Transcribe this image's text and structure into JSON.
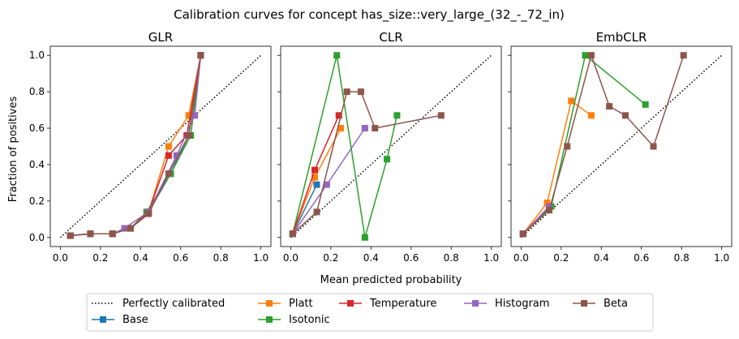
{
  "figure_title": "Calibration curves for concept has_size::very_large_(32_-_72_in)",
  "xlabel": "Mean predicted probability",
  "ylabel": "Fraction of positives",
  "legend": {
    "placement": "bottom-center",
    "entries": [
      {
        "key": "perfect",
        "label": "Perfectly calibrated"
      },
      {
        "key": "base",
        "label": "Base"
      },
      {
        "key": "platt",
        "label": "Platt"
      },
      {
        "key": "isotonic",
        "label": "Isotonic"
      },
      {
        "key": "temperature",
        "label": "Temperature"
      },
      {
        "key": "histogram",
        "label": "Histogram"
      },
      {
        "key": "beta",
        "label": "Beta"
      }
    ]
  },
  "colors": {
    "base": "#1f77b4",
    "platt": "#ff7f0e",
    "isotonic": "#2ca02c",
    "temperature": "#d62728",
    "histogram": "#9467bd",
    "beta": "#8c564b",
    "perfect": "#000000"
  },
  "chart_data": [
    {
      "type": "line",
      "title": "GLR",
      "xlim": [
        -0.05,
        1.05
      ],
      "ylim": [
        -0.05,
        1.05
      ],
      "xticks": [
        "0.0",
        "0.2",
        "0.4",
        "0.6",
        "0.8",
        "1.0"
      ],
      "yticks": [
        "0.0",
        "0.2",
        "0.4",
        "0.6",
        "0.8",
        "1.0"
      ],
      "series": [
        {
          "key": "base",
          "x": [
            0.05,
            0.15,
            0.26,
            0.35,
            0.44,
            0.55,
            0.64,
            0.7
          ],
          "y": [
            0.01,
            0.02,
            0.02,
            0.05,
            0.14,
            0.35,
            0.56,
            1.0
          ]
        },
        {
          "key": "platt",
          "x": [
            0.05,
            0.15,
            0.26,
            0.35,
            0.44,
            0.54,
            0.64,
            0.7
          ],
          "y": [
            0.01,
            0.02,
            0.02,
            0.05,
            0.14,
            0.5,
            0.67,
            1.0
          ]
        },
        {
          "key": "isotonic",
          "x": [
            0.05,
            0.15,
            0.26,
            0.35,
            0.43,
            0.55,
            0.65,
            0.7
          ],
          "y": [
            0.01,
            0.02,
            0.02,
            0.05,
            0.14,
            0.35,
            0.56,
            1.0
          ]
        },
        {
          "key": "temperature",
          "x": [
            0.05,
            0.15,
            0.26,
            0.35,
            0.44,
            0.54,
            0.63,
            0.7
          ],
          "y": [
            0.01,
            0.02,
            0.02,
            0.05,
            0.14,
            0.45,
            0.56,
            1.0
          ]
        },
        {
          "key": "histogram",
          "x": [
            0.05,
            0.15,
            0.26,
            0.32,
            0.44,
            0.58,
            0.67,
            0.7
          ],
          "y": [
            0.01,
            0.02,
            0.02,
            0.05,
            0.14,
            0.45,
            0.67,
            1.0
          ]
        },
        {
          "key": "beta",
          "x": [
            0.05,
            0.15,
            0.26,
            0.35,
            0.44,
            0.54,
            0.64,
            0.7
          ],
          "y": [
            0.01,
            0.02,
            0.02,
            0.05,
            0.13,
            0.35,
            0.56,
            1.0
          ]
        }
      ]
    },
    {
      "type": "line",
      "title": "CLR",
      "xlim": [
        -0.05,
        1.05
      ],
      "ylim": [
        -0.05,
        1.05
      ],
      "xticks": [
        "0.0",
        "0.2",
        "0.4",
        "0.6",
        "0.8",
        "1.0"
      ],
      "yticks": [],
      "series": [
        {
          "key": "base",
          "x": [
            0.01,
            0.13
          ],
          "y": [
            0.02,
            0.29
          ]
        },
        {
          "key": "platt",
          "x": [
            0.01,
            0.12,
            0.25
          ],
          "y": [
            0.02,
            0.33,
            0.6
          ]
        },
        {
          "key": "isotonic",
          "x": [
            0.01,
            0.23,
            0.37,
            0.48,
            0.53
          ],
          "y": [
            0.02,
            1.0,
            0.0,
            0.43,
            0.67
          ]
        },
        {
          "key": "temperature",
          "x": [
            0.01,
            0.12,
            0.24
          ],
          "y": [
            0.02,
            0.37,
            0.67
          ]
        },
        {
          "key": "histogram",
          "x": [
            0.01,
            0.18,
            0.37
          ],
          "y": [
            0.02,
            0.29,
            0.6
          ]
        },
        {
          "key": "beta",
          "x": [
            0.01,
            0.13,
            0.28,
            0.35,
            0.42,
            0.75
          ],
          "y": [
            0.02,
            0.14,
            0.8,
            0.8,
            0.6,
            0.67
          ]
        }
      ]
    },
    {
      "type": "line",
      "title": "EmbCLR",
      "xlim": [
        -0.05,
        1.05
      ],
      "ylim": [
        -0.05,
        1.05
      ],
      "xticks": [
        "0.0",
        "0.2",
        "0.4",
        "0.6",
        "0.8",
        "1.0"
      ],
      "yticks": [],
      "series": [
        {
          "key": "base",
          "x": [
            0.01,
            0.14
          ],
          "y": [
            0.02,
            0.16
          ]
        },
        {
          "key": "platt",
          "x": [
            0.01,
            0.13,
            0.25,
            0.35
          ],
          "y": [
            0.02,
            0.19,
            0.75,
            0.67
          ]
        },
        {
          "key": "isotonic",
          "x": [
            0.01,
            0.15,
            0.32,
            0.62
          ],
          "y": [
            0.02,
            0.17,
            1.0,
            0.73
          ]
        },
        {
          "key": "temperature",
          "x": [
            0.01,
            0.14
          ],
          "y": [
            0.02,
            0.17
          ]
        },
        {
          "key": "histogram",
          "x": [
            0.01,
            0.14
          ],
          "y": [
            0.02,
            0.17
          ]
        },
        {
          "key": "beta",
          "x": [
            0.01,
            0.14,
            0.23,
            0.35,
            0.44,
            0.52,
            0.66,
            0.81
          ],
          "y": [
            0.02,
            0.15,
            0.5,
            1.0,
            0.72,
            0.67,
            0.5,
            1.0
          ]
        }
      ]
    }
  ]
}
